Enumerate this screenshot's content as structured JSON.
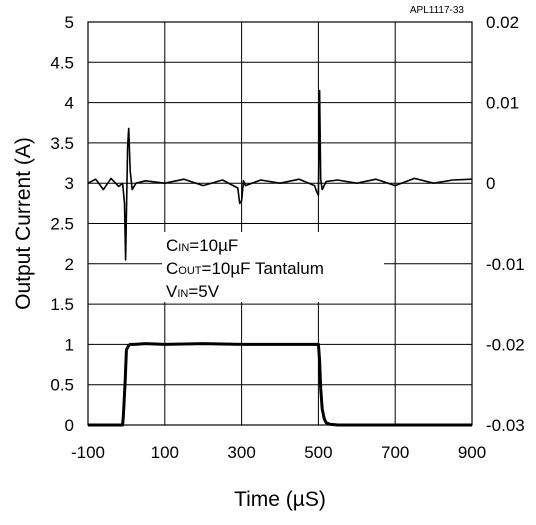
{
  "chart_data": {
    "type": "line",
    "title": "",
    "part_number": "APL1117-33",
    "xlabel": "Time (µS)",
    "ylabel": "Output Current (A)",
    "xlim": [
      -100,
      900
    ],
    "ylim": [
      0,
      5
    ],
    "y2lim": [
      -0.03,
      0.02
    ],
    "grid": true,
    "x_ticks": [
      -100,
      100,
      300,
      500,
      700,
      900
    ],
    "x_tick_labels": [
      "-100",
      "100",
      "300",
      "500",
      "700",
      "900"
    ],
    "y_ticks": [
      0,
      0.5,
      1,
      1.5,
      2,
      2.5,
      3,
      3.5,
      4,
      4.5,
      5
    ],
    "y_tick_labels": [
      "0",
      "0.5",
      "1",
      "1.5",
      "2",
      "2.5",
      "3",
      "3.5",
      "4",
      "4.5",
      "5"
    ],
    "y2_ticks": [
      -0.03,
      -0.02,
      -0.01,
      0,
      0.01,
      0.02
    ],
    "y2_tick_labels": [
      "-0.03",
      "-0.02",
      "-0.01",
      "0",
      "0.01",
      "0.02"
    ],
    "annotation": {
      "line1_main": "C",
      "line1_sub": "IN",
      "line1_rest": "=10µF",
      "line2_main": "C",
      "line2_sub": "OUT",
      "line2_rest": "=10µF Tantalum",
      "line3_main": "V",
      "line3_sub": "IN",
      "line3_rest": "=5V"
    },
    "series": [
      {
        "axis": "left",
        "x": [
          -100,
          -10,
          -8,
          -3,
          0,
          5,
          10,
          20,
          50,
          100,
          200,
          300,
          400,
          480,
          495,
          500,
          503,
          506,
          510,
          515,
          520,
          530,
          550,
          600,
          700,
          800,
          900
        ],
        "values": [
          0,
          0,
          0.1,
          0.55,
          0.93,
          0.98,
          1.0,
          1.0,
          1.01,
          1.0,
          1.01,
          1.0,
          1.0,
          1.0,
          1.0,
          1.0,
          0.8,
          0.45,
          0.2,
          0.08,
          0.03,
          0.01,
          0,
          0,
          0,
          0,
          0
        ]
      },
      {
        "axis": "right",
        "x": [
          -100,
          -80,
          -60,
          -40,
          -20,
          -10,
          -5,
          -2,
          0,
          3,
          6,
          10,
          15,
          25,
          50,
          100,
          150,
          200,
          250,
          290,
          295,
          300,
          305,
          310,
          350,
          400,
          450,
          490,
          495,
          500,
          503,
          506,
          510,
          520,
          550,
          600,
          650,
          700,
          750,
          800,
          850,
          900
        ],
        "values": [
          0,
          0.0005,
          -0.0008,
          0.0006,
          -0.0004,
          0,
          -0.0025,
          -0.0095,
          -0.004,
          0.0045,
          0.0068,
          0.0015,
          -0.0008,
          0,
          0.0003,
          0,
          0.0005,
          -0.0003,
          0.0004,
          -0.0006,
          -0.0025,
          -0.0022,
          0.0003,
          -0.0003,
          0.0004,
          0,
          0.0005,
          -0.0003,
          -0.001,
          -0.0015,
          0.0115,
          0.0005,
          -0.0008,
          0.0002,
          0.0004,
          0,
          0.0005,
          -0.0003,
          0.0006,
          0,
          0.0004,
          0.0005
        ]
      }
    ]
  }
}
